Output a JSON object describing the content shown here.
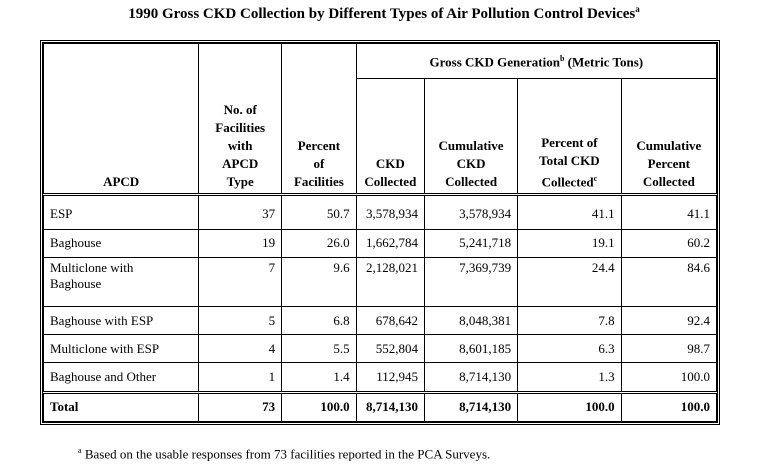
{
  "title": {
    "text": "1990 Gross CKD Collection by Different Types of Air Pollution Control Devices",
    "mark": "a"
  },
  "table": {
    "group_header": {
      "text": "Gross CKD Generation",
      "mark": "b",
      "suffix": " (Metric Tons)"
    },
    "headers": {
      "apcd": "APCD",
      "facilities": [
        "No. of",
        "Facilities",
        "with",
        "APCD",
        "Type"
      ],
      "percent_facilities": [
        "Percent",
        "of",
        "Facilities"
      ],
      "ckd_collected": [
        "CKD",
        "Collected"
      ],
      "cumulative_ckd": [
        "Cumulative",
        "CKD",
        "Collected"
      ],
      "percent_total": [
        "Percent of",
        "Total CKD",
        "Collected"
      ],
      "percent_total_mark": "c",
      "cumulative_percent": [
        "Cumulative",
        "Percent",
        "Collected"
      ]
    },
    "rows": [
      {
        "apcd": "ESP",
        "facilities": "37",
        "pct_fac": "50.7",
        "ckd": "3,578,934",
        "cum_ckd": "3,578,934",
        "pct_total": "41.1",
        "cum_pct": "41.1"
      },
      {
        "apcd": "Baghouse",
        "facilities": "19",
        "pct_fac": "26.0",
        "ckd": "1,662,784",
        "cum_ckd": "5,241,718",
        "pct_total": "19.1",
        "cum_pct": "60.2"
      },
      {
        "apcd": "Multiclone with Baghouse",
        "apcd_lines": [
          "Multiclone with",
          "Baghouse"
        ],
        "facilities": "7",
        "pct_fac": "9.6",
        "ckd": "2,128,021",
        "cum_ckd": "7,369,739",
        "pct_total": "24.4",
        "cum_pct": "84.6"
      },
      {
        "apcd": "Baghouse with ESP",
        "facilities": "5",
        "pct_fac": "6.8",
        "ckd": "678,642",
        "cum_ckd": "8,048,381",
        "pct_total": "7.8",
        "cum_pct": "92.4"
      },
      {
        "apcd": "Multiclone with ESP",
        "facilities": "4",
        "pct_fac": "5.5",
        "ckd": "552,804",
        "cum_ckd": "8,601,185",
        "pct_total": "6.3",
        "cum_pct": "98.7"
      },
      {
        "apcd": "Baghouse and Other",
        "facilities": "1",
        "pct_fac": "1.4",
        "ckd": "112,945",
        "cum_ckd": "8,714,130",
        "pct_total": "1.3",
        "cum_pct": "100.0"
      }
    ],
    "total": {
      "apcd": "Total",
      "facilities": "73",
      "pct_fac": "100.0",
      "ckd": "8,714,130",
      "cum_ckd": "8,714,130",
      "pct_total": "100.0",
      "cum_pct": "100.0"
    }
  },
  "footnote": {
    "mark": "a",
    "text": "Based on the usable responses from 73 facilities reported in the PCA Surveys."
  }
}
